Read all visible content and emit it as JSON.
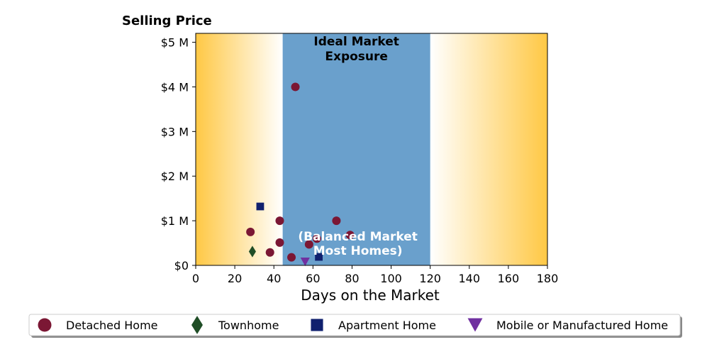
{
  "chart_data": {
    "type": "scatter",
    "ylabel": "Selling Price",
    "xlabel": "Days on the Market",
    "xlim": [
      0,
      180
    ],
    "ylim": [
      0,
      5.2
    ],
    "x_ticks": [
      0,
      20,
      40,
      60,
      80,
      100,
      120,
      140,
      160,
      180
    ],
    "x_tick_labels": [
      "0",
      "20",
      "40",
      "60",
      "80",
      "100",
      "120",
      "140",
      "160",
      "180"
    ],
    "y_ticks": [
      0,
      1,
      2,
      3,
      4,
      5
    ],
    "y_tick_labels": [
      "$0",
      "$1 M",
      "$2 M",
      "$3 M",
      "$4 M",
      "$5 M"
    ],
    "grid": false,
    "background": {
      "gradient_color": "#ffc844",
      "highlight_band": {
        "x_range": [
          44.5,
          120
        ],
        "color": "#6aa0cc",
        "title_lines": [
          "Ideal Market",
          "Exposure"
        ],
        "subtitle_lines": [
          "(Balanced Market",
          "Most Homes)"
        ]
      }
    },
    "legend": {
      "placement": "bottom"
    },
    "series": [
      {
        "name": "Detached Home",
        "marker": "circle",
        "color": "#7b1734",
        "points": [
          [
            28,
            0.75
          ],
          [
            38,
            0.29
          ],
          [
            43,
            1.0
          ],
          [
            43,
            0.51
          ],
          [
            49,
            0.18
          ],
          [
            51,
            4.0
          ],
          [
            58,
            0.47
          ],
          [
            62,
            0.6
          ],
          [
            72,
            1.0
          ],
          [
            79,
            0.68
          ]
        ]
      },
      {
        "name": "Townhome",
        "marker": "diamond",
        "color": "#1f4d26",
        "points": [
          [
            29,
            0.31
          ]
        ]
      },
      {
        "name": "Apartment Home",
        "marker": "square",
        "color": "#10206e",
        "points": [
          [
            33,
            1.32
          ],
          [
            63,
            0.19
          ]
        ]
      },
      {
        "name": "Mobile or Manufactured Home",
        "marker": "triangle-down",
        "color": "#7030a0",
        "points": [
          [
            56,
            0.08
          ]
        ]
      }
    ]
  }
}
